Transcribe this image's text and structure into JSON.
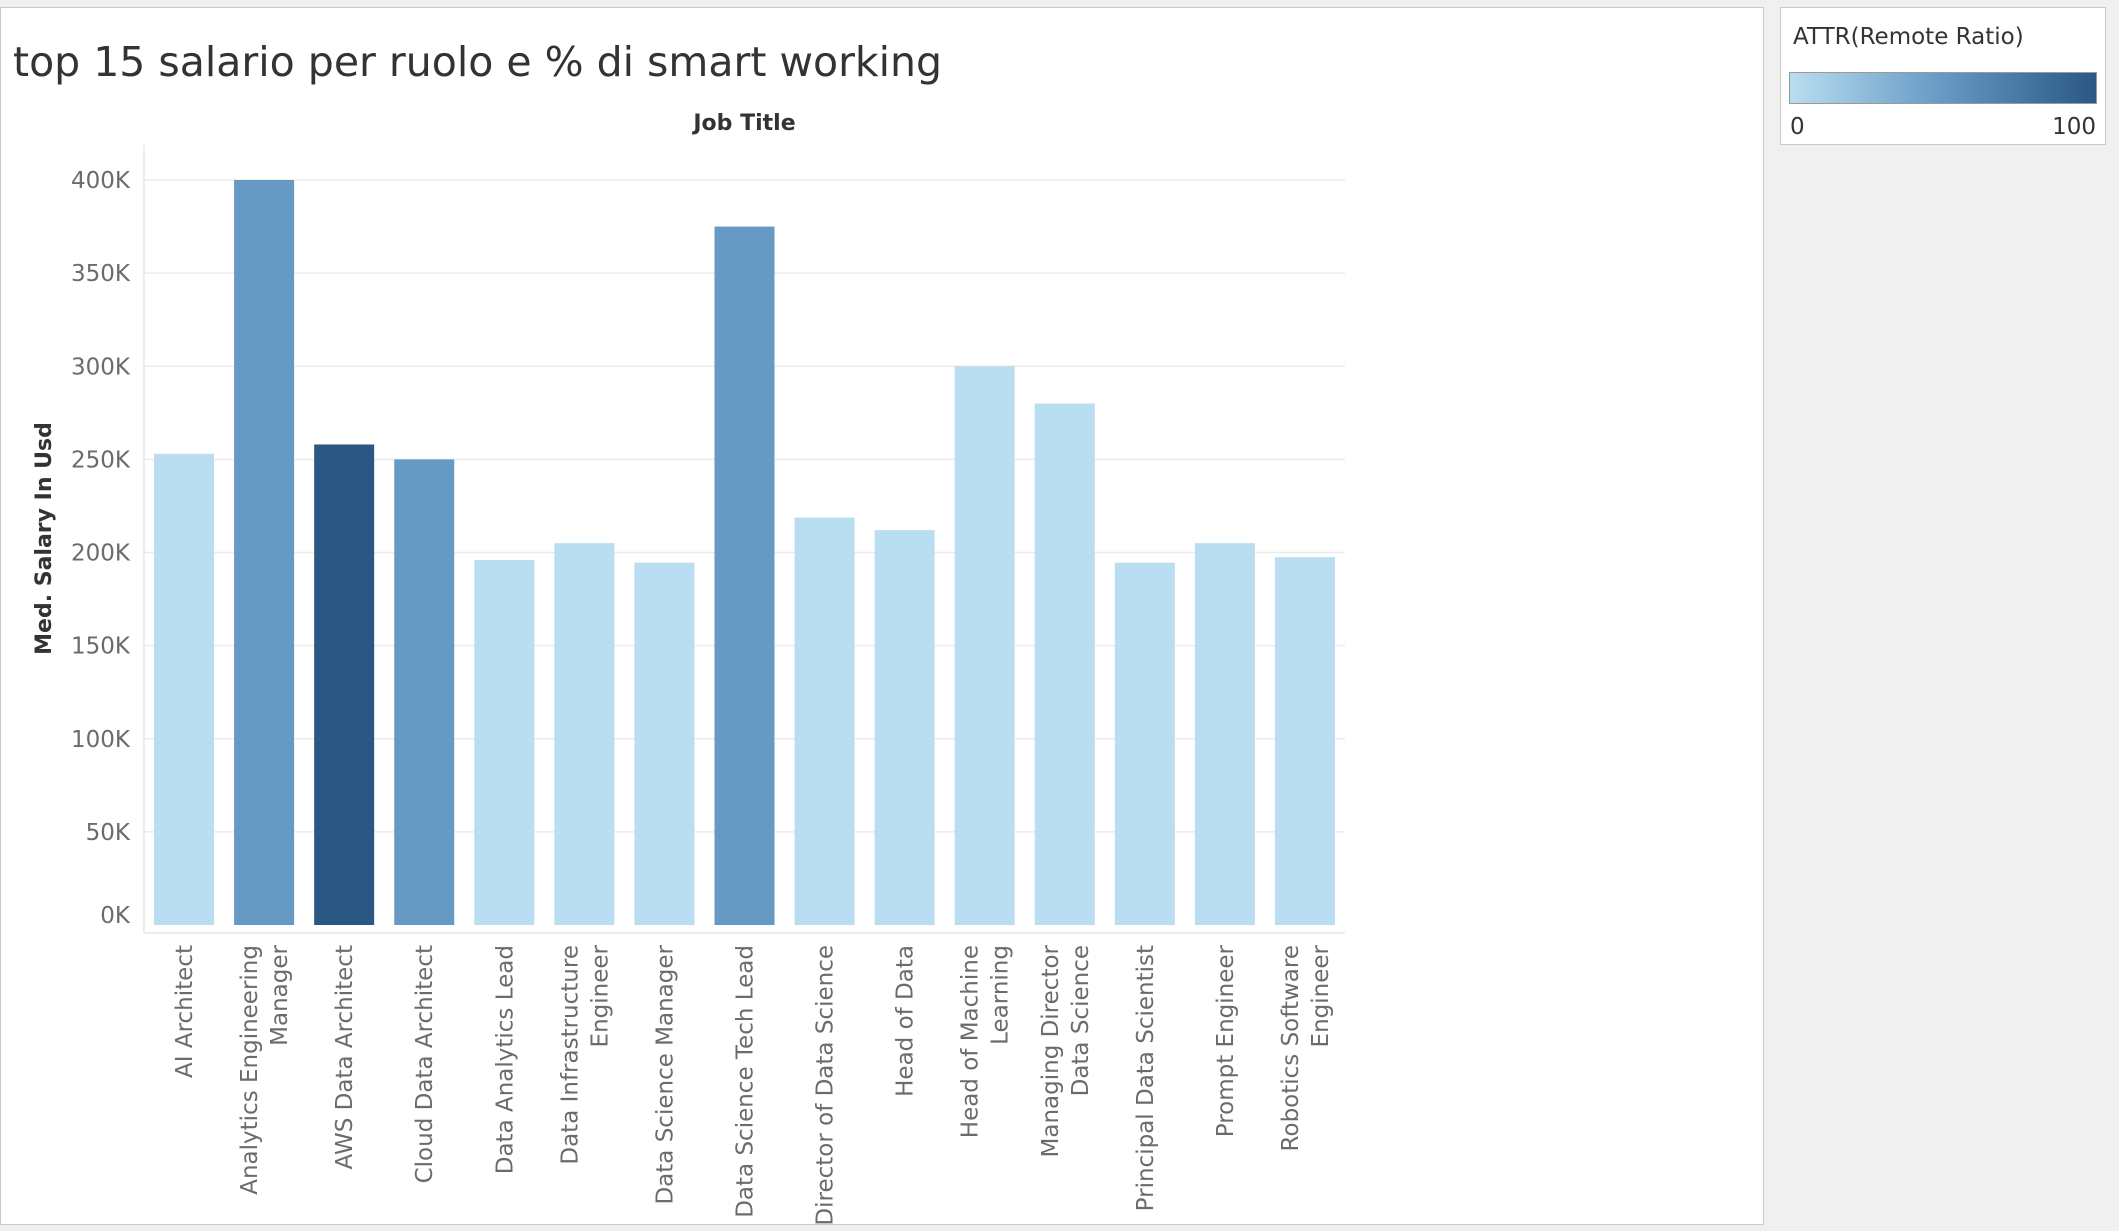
{
  "chart_data": {
    "type": "bar",
    "title": "top 15 salario per ruolo e % di smart working",
    "xlabel": "Job Title",
    "ylabel": "Med. Salary In Usd",
    "ylim": [
      0,
      400000
    ],
    "y_ticks": [
      "0K",
      "50K",
      "100K",
      "150K",
      "200K",
      "250K",
      "300K",
      "350K",
      "400K"
    ],
    "grid": "horizontal",
    "categories": [
      [
        "AI Architect"
      ],
      [
        "Analytics Engineering",
        "Manager"
      ],
      [
        "AWS Data Architect"
      ],
      [
        "Cloud Data Architect"
      ],
      [
        "Data Analytics Lead"
      ],
      [
        "Data Infrastructure",
        "Engineer"
      ],
      [
        "Data Science Manager"
      ],
      [
        "Data Science Tech Lead"
      ],
      [
        "Director of Data Science"
      ],
      [
        "Head of Data"
      ],
      [
        "Head of Machine",
        "Learning"
      ],
      [
        "Managing Director",
        "Data Science"
      ],
      [
        "Principal Data Scientist"
      ],
      [
        "Prompt Engineer"
      ],
      [
        "Robotics Software",
        "Engineer"
      ]
    ],
    "values": [
      253000,
      400000,
      258000,
      250000,
      196000,
      205000,
      194500,
      375000,
      218750,
      212000,
      300000,
      280000,
      194500,
      205000,
      197500
    ],
    "color_values": [
      0,
      50,
      100,
      50,
      0,
      0,
      0,
      50,
      0,
      0,
      0,
      0,
      0,
      0,
      0
    ],
    "color_legend": {
      "title": "ATTR(Remote Ratio)",
      "min_label": "0",
      "max_label": "100",
      "min": 0,
      "max": 100,
      "color_low": "#b9ddf1",
      "color_mid": "#6699c4",
      "color_high": "#2a5783"
    },
    "legend_position": "top-right"
  }
}
